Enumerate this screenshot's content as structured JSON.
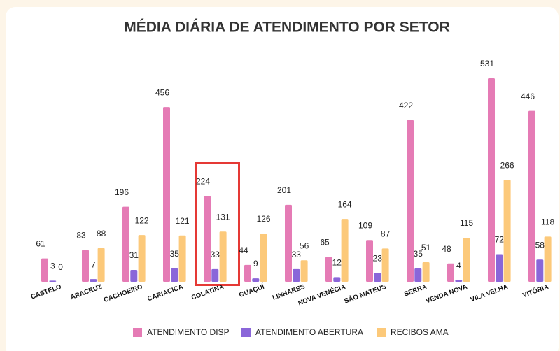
{
  "chart_data": {
    "type": "bar",
    "title": "MÉDIA DIÁRIA DE ATENDIMENTO POR SETOR",
    "categories": [
      "CASTELO",
      "ARACRUZ",
      "CACHOEIRO",
      "CARIACICA",
      "COLATINA",
      "GUAÇUÍ",
      "LINHARES",
      "NOVA VENÉCIA",
      "SÃO MATEUS",
      "SERRA",
      "VENDA NOVA",
      "VILA VELHA",
      "VITÓRIA"
    ],
    "series": [
      {
        "name": "ATENDIMENTO DISP",
        "color": "#e57bb5",
        "values": [
          61,
          83,
          196,
          456,
          224,
          44,
          201,
          65,
          109,
          422,
          48,
          531,
          446
        ]
      },
      {
        "name": "ATENDIMENTO ABERTURA",
        "color": "#8a66d9",
        "values": [
          3,
          7,
          31,
          35,
          33,
          9,
          33,
          12,
          23,
          35,
          4,
          72,
          58
        ]
      },
      {
        "name": "RECIBOS AMA",
        "color": "#fcc97a",
        "values": [
          0,
          88,
          122,
          121,
          131,
          126,
          56,
          164,
          87,
          51,
          115,
          266,
          118
        ]
      }
    ],
    "legend": "bottom"
  }
}
